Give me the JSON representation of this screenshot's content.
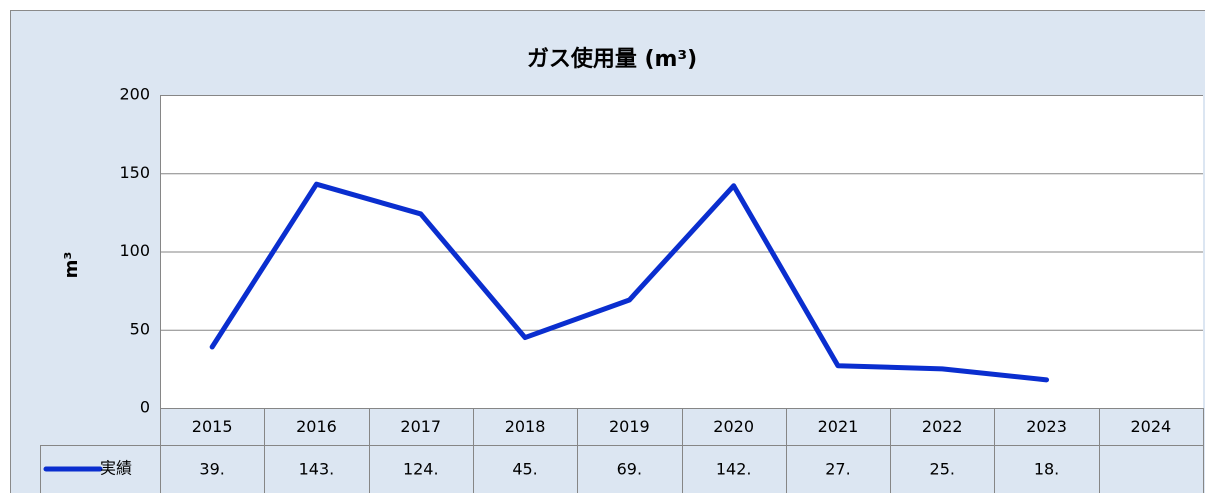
{
  "chart_data": {
    "type": "line",
    "title": "ガス使用量 (m³)",
    "y_label": "m³",
    "categories": [
      "2015",
      "2016",
      "2017",
      "2018",
      "2019",
      "2020",
      "2021",
      "2022",
      "2023",
      "2024"
    ],
    "series": [
      {
        "name": "実績",
        "color": "#0a2ecf",
        "values": [
          39,
          143,
          124,
          45,
          69,
          142,
          27,
          25,
          18,
          null
        ],
        "value_labels": [
          "39.",
          "143.",
          "124.",
          "45.",
          "69.",
          "142.",
          "27.",
          "25.",
          "18.",
          null
        ]
      }
    ],
    "ylim": [
      0,
      200
    ],
    "yticks": [
      0,
      50,
      100,
      150,
      200
    ],
    "grid": true
  }
}
